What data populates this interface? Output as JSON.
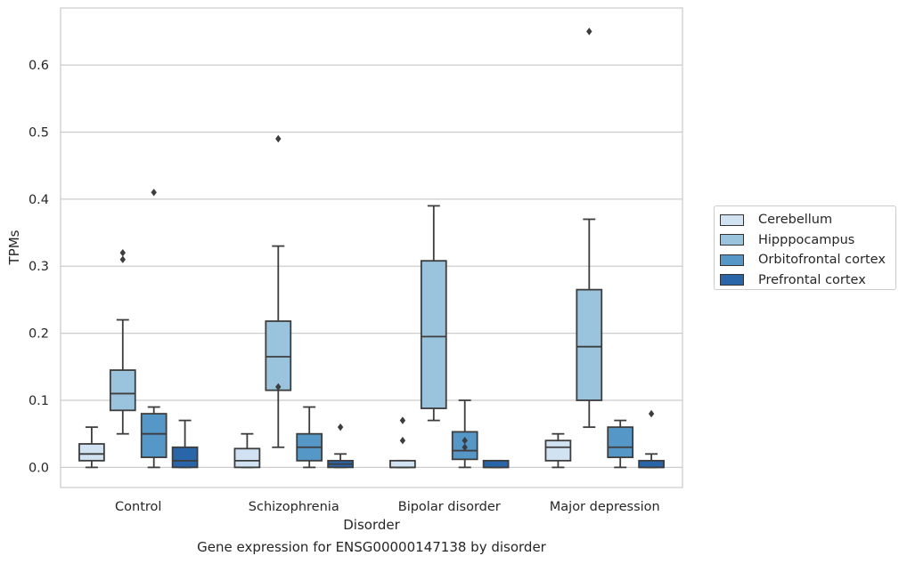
{
  "chart_data": {
    "type": "box",
    "title": "",
    "xlabel": "Disorder",
    "ylabel": "TPMs",
    "caption": "Gene expression for ENSG00000147138 by disorder",
    "ylim": [
      -0.03,
      0.685
    ],
    "yticks": [
      "0.0",
      "0.1",
      "0.2",
      "0.3",
      "0.4",
      "0.5",
      "0.6"
    ],
    "grid": "horizontal",
    "legend_position": "right",
    "categories": [
      "Control",
      "Schizophrenia",
      "Bipolar disorder",
      "Major depression"
    ],
    "series": [
      {
        "name": "Cerebellum",
        "color": "#d1e3f2",
        "boxes": [
          {
            "whislo": 0.0,
            "q1": 0.01,
            "med": 0.02,
            "q3": 0.035,
            "whishi": 0.06,
            "fliers": []
          },
          {
            "whislo": 0.0,
            "q1": 0.0,
            "med": 0.01,
            "q3": 0.028,
            "whishi": 0.05,
            "fliers": []
          },
          {
            "whislo": 0.0,
            "q1": 0.0,
            "med": 0.0,
            "q3": 0.01,
            "whishi": 0.01,
            "fliers": [
              0.04,
              0.07
            ]
          },
          {
            "whislo": 0.0,
            "q1": 0.01,
            "med": 0.03,
            "q3": 0.04,
            "whishi": 0.05,
            "fliers": []
          }
        ]
      },
      {
        "name": "Hipppocampus",
        "color": "#9ac4de",
        "boxes": [
          {
            "whislo": 0.05,
            "q1": 0.085,
            "med": 0.11,
            "q3": 0.145,
            "whishi": 0.22,
            "fliers": [
              0.31,
              0.32
            ]
          },
          {
            "whislo": 0.03,
            "q1": 0.115,
            "med": 0.165,
            "q3": 0.218,
            "whishi": 0.33,
            "fliers": [
              0.12,
              0.49
            ]
          },
          {
            "whislo": 0.07,
            "q1": 0.088,
            "med": 0.195,
            "q3": 0.308,
            "whishi": 0.39,
            "fliers": []
          },
          {
            "whislo": 0.06,
            "q1": 0.1,
            "med": 0.18,
            "q3": 0.265,
            "whishi": 0.37,
            "fliers": [
              0.65
            ]
          }
        ]
      },
      {
        "name": "Orbitofrontal cortex",
        "color": "#5597c7",
        "boxes": [
          {
            "whislo": 0.0,
            "q1": 0.015,
            "med": 0.05,
            "q3": 0.08,
            "whishi": 0.09,
            "fliers": [
              0.41
            ]
          },
          {
            "whislo": 0.0,
            "q1": 0.01,
            "med": 0.03,
            "q3": 0.05,
            "whishi": 0.09,
            "fliers": []
          },
          {
            "whislo": 0.0,
            "q1": 0.012,
            "med": 0.025,
            "q3": 0.053,
            "whishi": 0.1,
            "fliers": [
              0.03,
              0.04
            ]
          },
          {
            "whislo": 0.0,
            "q1": 0.015,
            "med": 0.03,
            "q3": 0.06,
            "whishi": 0.07,
            "fliers": []
          }
        ]
      },
      {
        "name": "Prefrontal cortex",
        "color": "#2966a9",
        "boxes": [
          {
            "whislo": 0.0,
            "q1": 0.0,
            "med": 0.01,
            "q3": 0.03,
            "whishi": 0.07,
            "fliers": []
          },
          {
            "whislo": 0.0,
            "q1": 0.0,
            "med": 0.005,
            "q3": 0.01,
            "whishi": 0.02,
            "fliers": [
              0.06
            ]
          },
          {
            "whislo": 0.0,
            "q1": 0.0,
            "med": 0.0,
            "q3": 0.01,
            "whishi": 0.01,
            "fliers": []
          },
          {
            "whislo": 0.0,
            "q1": 0.0,
            "med": 0.0,
            "q3": 0.01,
            "whishi": 0.02,
            "fliers": [
              0.08
            ]
          }
        ]
      }
    ]
  }
}
